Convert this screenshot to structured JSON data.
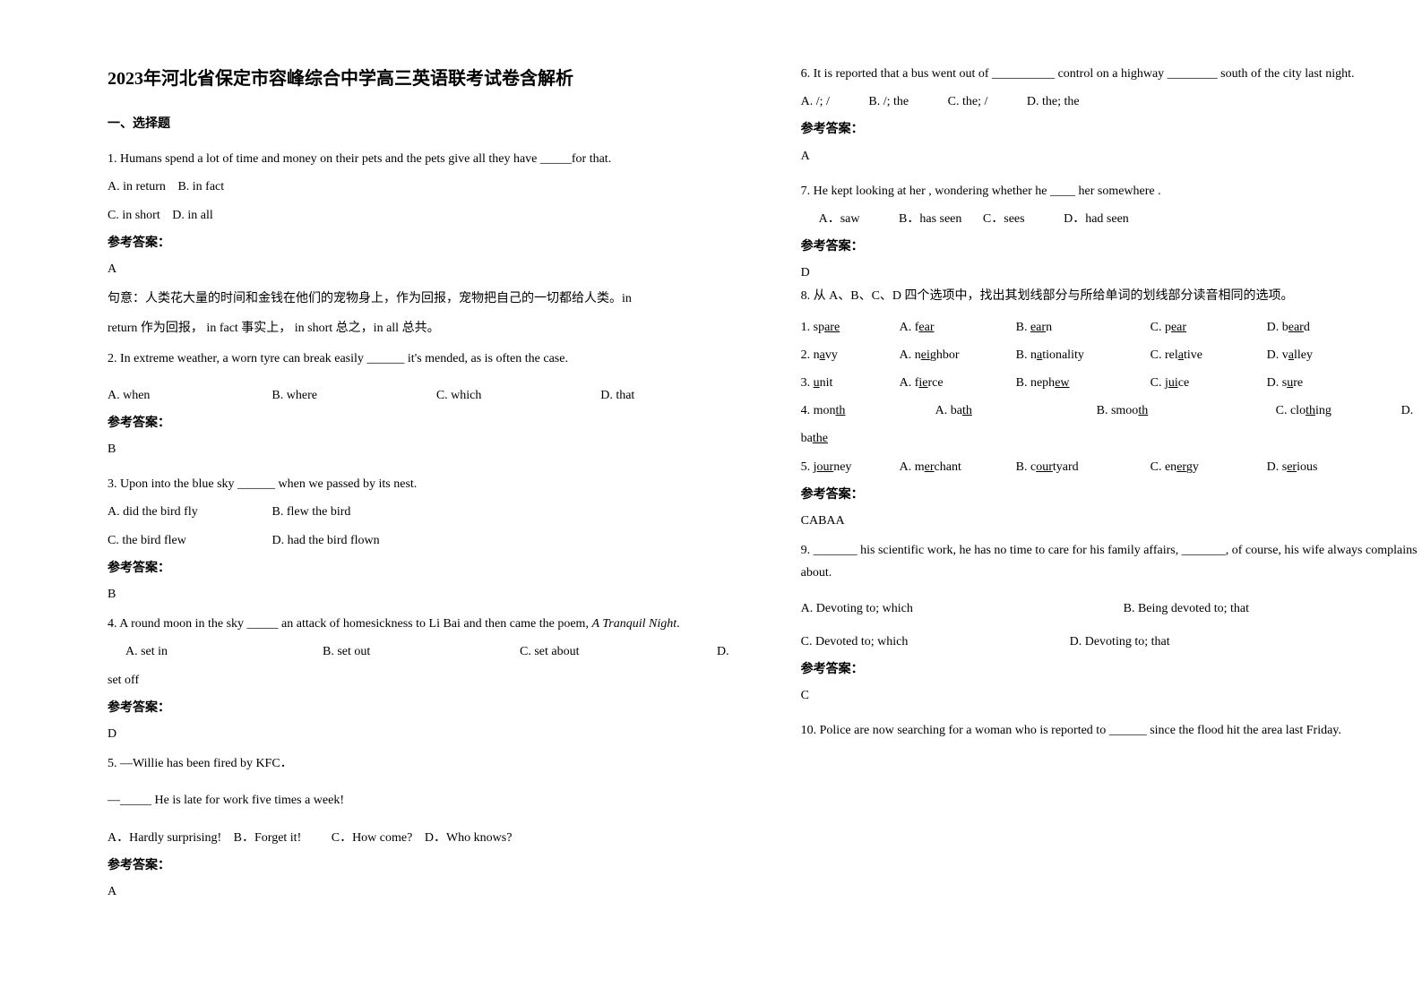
{
  "title": "2023年河北省保定市容峰综合中学高三英语联考试卷含解析",
  "section1_header": "一、选择题",
  "q1": {
    "text": "1. Humans spend a lot of time and money on their pets and the pets give all they have _____for that.",
    "optA": "A. in return",
    "optB": "B. in fact",
    "optC": "C. in short",
    "optD": "D. in all",
    "answer_label": "参考答案：",
    "answer": "A",
    "explanation1": "句意：人类花大量的时间和金钱在他们的宠物身上，作为回报，宠物把自己的一切都给人类。in",
    "explanation2": "return 作为回报， in fact 事实上， in short 总之，in all 总共。"
  },
  "q2": {
    "text": "2. In extreme weather, a worn tyre can break easily ______ it's mended, as is often the case.",
    "optA": "A. when",
    "optB": "B. where",
    "optC": "C. which",
    "optD": "D. that",
    "answer_label": "参考答案：",
    "answer": "B"
  },
  "q3": {
    "text": "3. Upon into the blue sky ______ when we passed by its nest.",
    "optA": "A. did the bird fly",
    "optB": "B. flew the bird",
    "optC": "C. the bird flew",
    "optD": "D. had the bird flown",
    "answer_label": "参考答案：",
    "answer": "B"
  },
  "q4": {
    "text_pre": "4. A round moon in the sky _____ an attack of homesickness to Li Bai and then came the poem, ",
    "text_italic": "A Tranquil Night",
    "text_post": ".",
    "optA": "A. set in",
    "optB": "B. set out",
    "optC": "C. set about",
    "optD": "D. set off",
    "answer_label": "参考答案：",
    "answer": "D"
  },
  "q5": {
    "line1": "5. —Willie has been fired by KFC．",
    "line2": "—_____ He is late for work five times a week!",
    "optA": "A．Hardly surprising!",
    "optB": "B．Forget it!",
    "optC": "C．How come?",
    "optD": "D．Who knows?",
    "answer_label": "参考答案：",
    "answer": "A"
  },
  "q6": {
    "text": "6. It is reported that a bus went out of __________ control on a highway ________ south of the city last night.",
    "optA": "A. /; /",
    "optB": "B. /; the",
    "optC": "C. the; /",
    "optD": "D. the; the",
    "answer_label": "参考答案：",
    "answer": "A"
  },
  "q7": {
    "text": "7. He kept looking at her , wondering whether he ____ her somewhere .",
    "optA": "A．saw",
    "optB": "B．has seen",
    "optC": "C．sees",
    "optD": "D．had seen",
    "answer_label": "参考答案：",
    "answer": "D"
  },
  "q8": {
    "text": "8. 从 A、B、C、D 四个选项中，找出其划线部分与所给单词的划线部分读音相同的选项。",
    "rows": [
      {
        "num": "1. sp",
        "num_u": "are",
        "a": "A. f",
        "a_u": "ear",
        "b": "B. ",
        "b_u": "ear",
        "b_post": "n",
        "c": "C. p",
        "c_u": "ear",
        "d": "D. b",
        "d_u": "ear",
        "d_post": "d"
      },
      {
        "num": "2. n",
        "num_u": "a",
        "num_post": "vy",
        "a": "A. n",
        "a_u": "ei",
        "a_post": "ghbor",
        "b": "B. n",
        "b_u": "a",
        "b_post": "tionality",
        "c": "C. rel",
        "c_u": "a",
        "c_post": "tive",
        "d": "D. v",
        "d_u": "a",
        "d_post": "lley"
      },
      {
        "num": "3. ",
        "num_u": "u",
        "num_post": "nit",
        "a": "A. f",
        "a_u": "ie",
        "a_post": "rce",
        "b": "B. neph",
        "b_u": "ew",
        "c": "C. j",
        "c_u": "ui",
        "c_post": "ce",
        "d": "D. s",
        "d_u": "u",
        "d_post": "re"
      },
      {
        "num": "4. mon",
        "num_u": "th",
        "a": "A. ba",
        "a_u": "th",
        "b": "B. smoo",
        "b_u": "th",
        "c": "C. clo",
        "c_u": "th",
        "c_post": "ing",
        "d": "D. ba",
        "d_u": "the"
      },
      {
        "num": "5. j",
        "num_u": "our",
        "num_post": "ney",
        "a": "A. m",
        "a_u": "er",
        "a_post": "chant",
        "b": "B. c",
        "b_u": "our",
        "b_post": "tyard",
        "c": "C. en",
        "c_u": "er",
        "c_post": "gy",
        "d": "D. s",
        "d_u": "er",
        "d_post": "ious"
      }
    ],
    "answer_label": "参考答案：",
    "answer": "CABAA"
  },
  "q9": {
    "text": "9. _______ his scientific work, he has no time to care for his family affairs, _______, of course, his wife always complains about.",
    "optA": "A. Devoting to; which",
    "optB": "B. Being devoted to; that",
    "optC": "C. Devoted to; which",
    "optD": "D. Devoting to; that",
    "answer_label": "参考答案：",
    "answer": "C"
  },
  "q10": {
    "text": "10. Police are now searching for a woman who is reported to ______ since the flood hit the area last Friday."
  }
}
